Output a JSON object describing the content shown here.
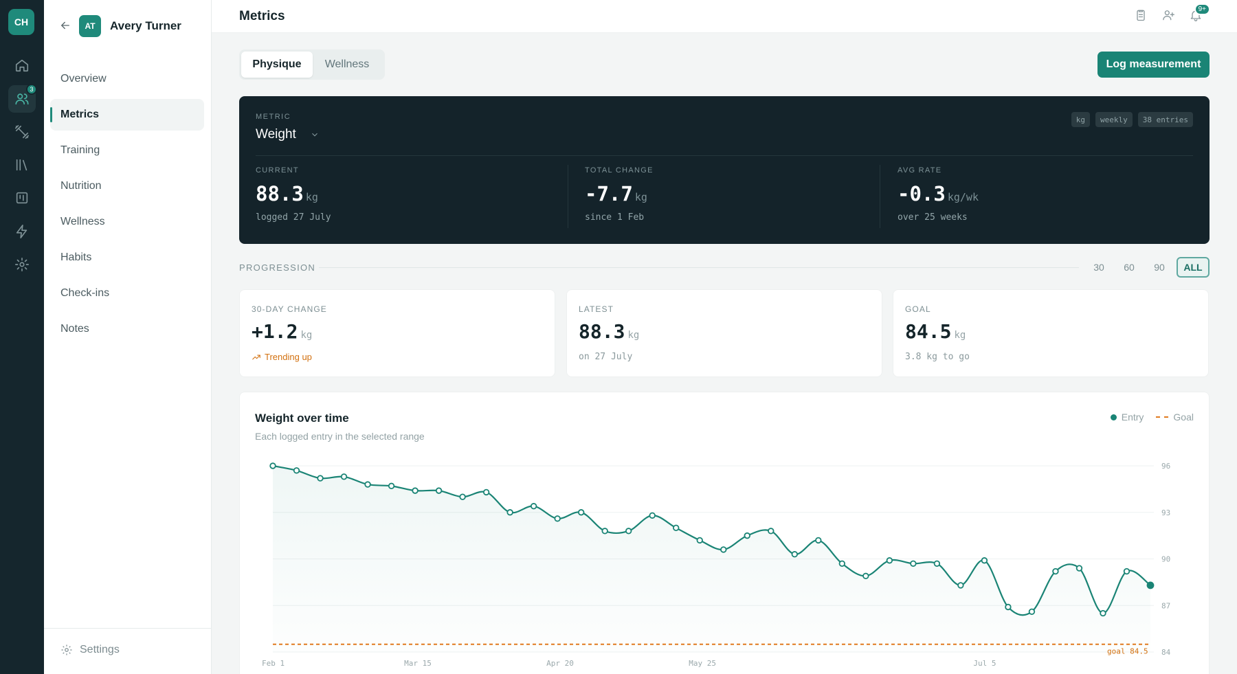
{
  "rail": {
    "logo": "CH",
    "items": [
      {
        "icon": "home-icon"
      },
      {
        "icon": "users-icon",
        "badge": "3"
      },
      {
        "icon": "dumbbell-icon"
      },
      {
        "icon": "library-icon"
      },
      {
        "icon": "board-icon"
      },
      {
        "icon": "bolt-icon"
      },
      {
        "icon": "gear-icon"
      }
    ]
  },
  "client": {
    "initials": "AT",
    "name": "Avery Turner"
  },
  "nav": [
    "Overview",
    "Metrics",
    "Training",
    "Nutrition",
    "Wellness",
    "Habits",
    "Check-ins",
    "Notes"
  ],
  "nav_active": "Metrics",
  "settings_label": "Settings",
  "topbar": {
    "title": "Metrics",
    "notif_badge": "9+"
  },
  "tabs": {
    "physique": "Physique",
    "wellness": "Wellness",
    "active": "Physique"
  },
  "log_button": "Log measurement",
  "hero": {
    "metric_label": "METRIC",
    "metric_value": "Weight",
    "tags": [
      "kg",
      "weekly",
      "38 entries"
    ],
    "current": {
      "label": "CURRENT",
      "value": "88.3",
      "unit": "kg",
      "sub": "logged 27 July"
    },
    "total_change": {
      "label": "TOTAL CHANGE",
      "value": "-7.7",
      "unit": "kg",
      "sub": "since 1 Feb"
    },
    "avg_rate": {
      "label": "AVG RATE",
      "value": "-0.3",
      "unit": "kg/wk",
      "sub": "over 25 weeks"
    }
  },
  "progression": {
    "label": "PROGRESSION",
    "ranges": [
      "30",
      "60",
      "90",
      "ALL"
    ],
    "active_range": "ALL"
  },
  "cards": {
    "change30": {
      "label": "30-DAY CHANGE",
      "value": "+1.2",
      "unit": "kg",
      "trend": "Trending up"
    },
    "latest": {
      "label": "LATEST",
      "value": "88.3",
      "unit": "kg",
      "sub": "on 27 July"
    },
    "goal": {
      "label": "GOAL",
      "value": "84.5",
      "unit": "kg",
      "sub": "3.8 kg to go"
    }
  },
  "colors": {
    "accent": "#1a8475",
    "goal": "#e07a1f",
    "dark_panel": "#14232a"
  },
  "chart_data": {
    "type": "line",
    "title": "Weight over time",
    "subtitle": "Each logged entry in the selected range",
    "legend": [
      "Entry",
      "Goal"
    ],
    "legend_position": "top-right",
    "x_tick_labels": [
      "Feb 1",
      "Mar 15",
      "Apr 20",
      "May 25",
      "Jul 5"
    ],
    "y_ticks": [
      84,
      87,
      90,
      93,
      96
    ],
    "ylim": [
      84,
      96
    ],
    "goal": {
      "value": 84.5,
      "label": "goal 84.5"
    },
    "series": [
      {
        "name": "Entry",
        "values": [
          96.0,
          95.7,
          95.2,
          95.3,
          94.8,
          94.7,
          94.4,
          94.4,
          94.0,
          94.3,
          93.0,
          93.4,
          92.6,
          93.0,
          91.8,
          91.8,
          92.8,
          92.0,
          91.2,
          90.6,
          91.5,
          91.8,
          90.3,
          91.2,
          89.7,
          88.9,
          89.9,
          89.7,
          89.7,
          88.3,
          89.9,
          86.9,
          86.6,
          89.2,
          89.4,
          86.5,
          89.2,
          88.3
        ]
      }
    ]
  }
}
